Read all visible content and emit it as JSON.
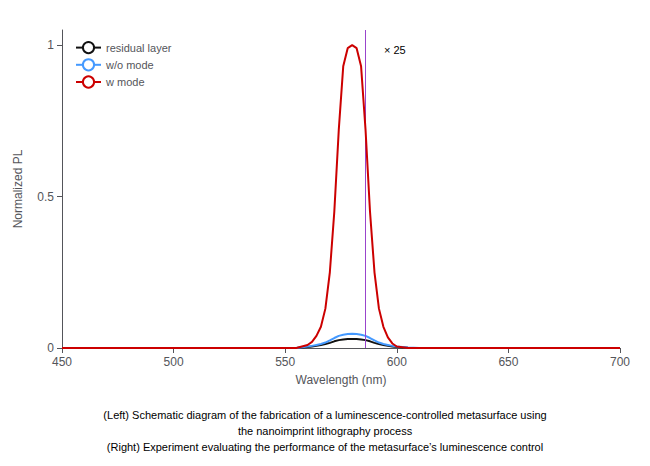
{
  "chart_data": {
    "type": "line",
    "subtitle": "(Left) Schematic diagram of the fabrication of a luminescence-controlled metasurface using\nthe nanoimprint lithography process\n(Right) Experiment evaluating the performance of the metasurface’s luminescence control",
    "x": [
      450,
      455,
      460,
      465,
      470,
      475,
      480,
      485,
      490,
      495,
      500,
      505,
      510,
      515,
      520,
      525,
      530,
      535,
      540,
      545,
      550,
      555,
      560,
      562,
      564,
      566,
      568,
      570,
      572,
      574,
      576,
      578,
      580,
      582,
      584,
      586,
      588,
      590,
      592,
      594,
      596,
      598,
      600,
      605,
      610,
      615,
      620,
      625,
      630,
      635,
      640,
      645,
      650,
      660,
      670,
      680,
      690,
      700
    ],
    "series": [
      {
        "name": "residual layer",
        "color": "#111111",
        "values": [
          0,
          0,
          0,
          0,
          0,
          0,
          0,
          0,
          0,
          0,
          0,
          0,
          0,
          0,
          0,
          0,
          0,
          0,
          0,
          0,
          0,
          0,
          0.003,
          0.005,
          0.007,
          0.01,
          0.013,
          0.017,
          0.022,
          0.026,
          0.028,
          0.03,
          0.03,
          0.03,
          0.028,
          0.026,
          0.022,
          0.017,
          0.013,
          0.01,
          0.007,
          0.005,
          0.003,
          0.001,
          0,
          0,
          0,
          0,
          0,
          0,
          0,
          0,
          0,
          0,
          0,
          0,
          0,
          0
        ]
      },
      {
        "name": "w/o mode",
        "color": "#4499ff",
        "values": [
          0,
          0,
          0,
          0,
          0,
          0,
          0,
          0,
          0,
          0,
          0,
          0,
          0,
          0,
          0,
          0,
          0,
          0,
          0,
          0,
          0,
          0,
          0.005,
          0.007,
          0.01,
          0.013,
          0.018,
          0.025,
          0.033,
          0.04,
          0.044,
          0.046,
          0.047,
          0.046,
          0.044,
          0.04,
          0.033,
          0.025,
          0.018,
          0.013,
          0.01,
          0.007,
          0.005,
          0.002,
          0,
          0,
          0,
          0,
          0,
          0,
          0,
          0,
          0,
          0,
          0,
          0,
          0,
          0
        ]
      },
      {
        "name": "w mode",
        "color": "#cc0000",
        "values": [
          0,
          0,
          0,
          0,
          0,
          0,
          0,
          0,
          0,
          0,
          0,
          0,
          0,
          0,
          0,
          0,
          0,
          0,
          0,
          0,
          0,
          0,
          0.01,
          0.02,
          0.04,
          0.07,
          0.13,
          0.25,
          0.45,
          0.72,
          0.93,
          0.99,
          1.0,
          0.99,
          0.93,
          0.72,
          0.45,
          0.25,
          0.13,
          0.07,
          0.035,
          0.015,
          0.005,
          0,
          0,
          0,
          0,
          0,
          0,
          0,
          0,
          0,
          0,
          0,
          0,
          0,
          0,
          0
        ]
      }
    ],
    "xlabel": "Wavelength (nm)",
    "ylabel": "Normalized PL",
    "xlim": [
      450,
      700
    ],
    "ylim": [
      0,
      1.05
    ],
    "xticks": [
      450,
      500,
      550,
      600,
      650,
      700
    ],
    "yticks": [
      0,
      0.5,
      1
    ],
    "grid": false,
    "legend": "upper left",
    "annotations": [
      {
        "text": "× 25",
        "x": 592,
        "y": 1.02
      }
    ],
    "vlines": [
      {
        "x": 586,
        "color": "#9944cc"
      }
    ]
  }
}
